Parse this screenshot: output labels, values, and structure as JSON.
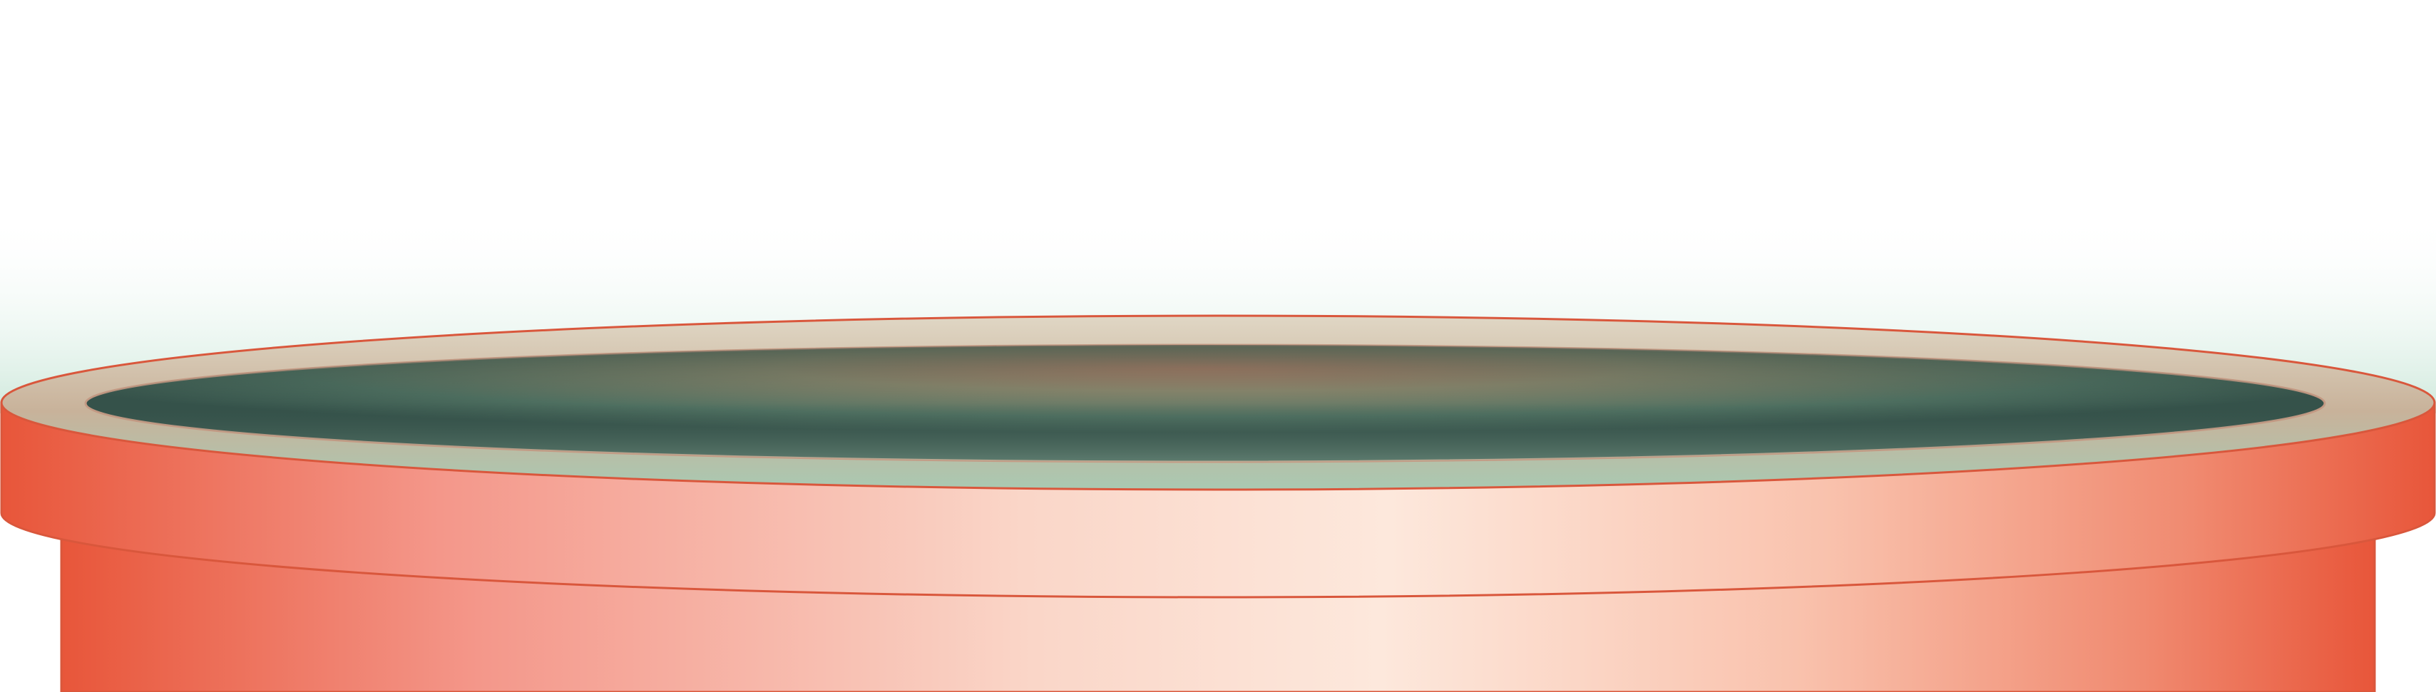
{
  "scene": {
    "subject": "platform-pedestal",
    "colors": {
      "background": "#ffffff",
      "glow": "#cfe9dc",
      "band_edge": "#e8563a",
      "band_mid": "#fde8dc",
      "outline": "#d9573c",
      "rim": "#c8b29a",
      "rim_light": "#e0d7c5",
      "well_dark": "#35524a",
      "well_warm": "#b9836a",
      "well_light": "#a9c9b2"
    }
  }
}
